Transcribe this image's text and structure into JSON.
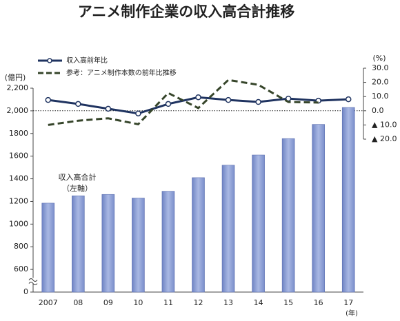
{
  "chart_data": {
    "type": "bar",
    "title": "アニメ制作企業の収入高合計推移",
    "y_unit": "(億円)",
    "y2_unit": "(%)",
    "x_unit": "(年)",
    "categories": [
      "2007",
      "08",
      "09",
      "10",
      "11",
      "12",
      "13",
      "14",
      "15",
      "16",
      "17"
    ],
    "annotation": "（左軸）",
    "series": [
      {
        "name": "収入高合計",
        "type": "bar",
        "color": "#8c9fd4",
        "values": [
          1185,
          1250,
          1262,
          1230,
          1290,
          1410,
          1520,
          1610,
          1755,
          1880,
          2030
        ]
      },
      {
        "name": "収入高前年比",
        "type": "line",
        "axis": "y2",
        "color": "#1f3360",
        "marker": "circle",
        "values": [
          7.6,
          4.8,
          1.4,
          -1.9,
          4.8,
          9.5,
          7.6,
          6.2,
          8.6,
          7.1,
          8.1
        ]
      },
      {
        "name": "参考：アニメ制作本数の前年比推移",
        "type": "line",
        "axis": "y2",
        "color": "#36452a",
        "dashed": true,
        "values": [
          -10,
          -7,
          -5.3,
          -9.5,
          12.5,
          1.9,
          21.7,
          18.3,
          6.2,
          5.8,
          null
        ]
      }
    ],
    "ylim": [
      0,
      2200
    ],
    "y_axis_break": true,
    "yticks": [
      0,
      600,
      800,
      1000,
      1200,
      1400,
      1600,
      1800,
      {
        "value": 2000,
        "label": "2,000"
      },
      {
        "value": 2200,
        "label": "2,200"
      }
    ],
    "y2lim": [
      -20,
      30
    ],
    "y2ticks": [
      {
        "value": 30,
        "label": "30.0"
      },
      {
        "value": 20,
        "label": "20.0"
      },
      {
        "value": 10,
        "label": "10.0"
      },
      {
        "value": 0,
        "label": "0.0"
      },
      {
        "value": -10,
        "label": "▲ 10.0"
      },
      {
        "value": -20,
        "label": "▲ 20.0"
      }
    ],
    "y2_reference_line": 0,
    "legend": "top-left"
  }
}
